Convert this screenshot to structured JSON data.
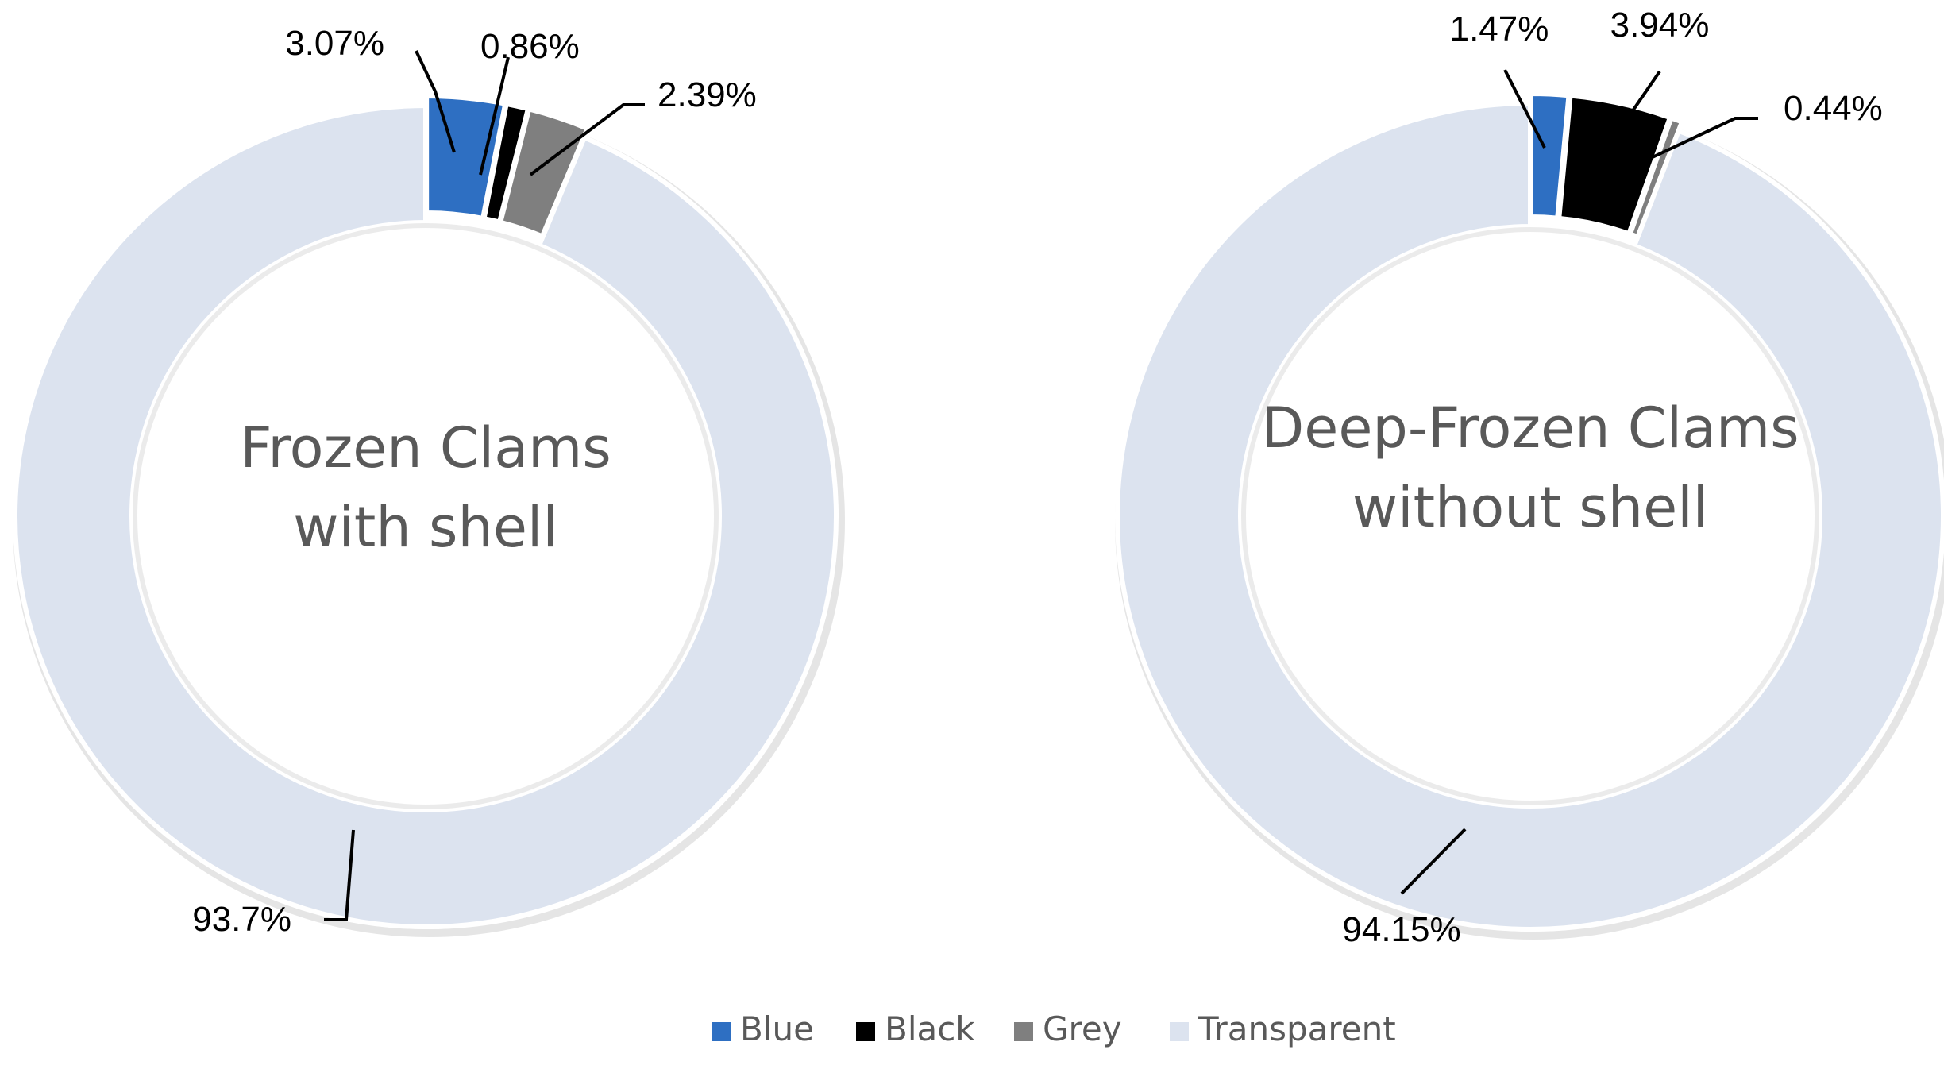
{
  "chart_data": [
    {
      "type": "pie",
      "center_label": [
        "Frozen Clams",
        "with shell"
      ],
      "slices": [
        {
          "name": "Blue",
          "value": 3.07,
          "label": "3.07%"
        },
        {
          "name": "Black",
          "value": 0.86,
          "label": "0.86%"
        },
        {
          "name": "Grey",
          "value": 2.39,
          "label": "2.39%"
        },
        {
          "name": "Transparent",
          "value": 93.7,
          "label": "93.7%"
        }
      ]
    },
    {
      "type": "pie",
      "center_label": [
        "Deep-Frozen Clams",
        "without shell"
      ],
      "slices": [
        {
          "name": "Blue",
          "value": 1.47,
          "label": "1.47%"
        },
        {
          "name": "Black",
          "value": 3.94,
          "label": "3.94%"
        },
        {
          "name": "Grey",
          "value": 0.44,
          "label": "0.44%"
        },
        {
          "name": "Transparent",
          "value": 94.15,
          "label": "94.15%"
        }
      ]
    }
  ],
  "legend": {
    "placement": "bottom",
    "items": [
      {
        "name": "Blue",
        "color": "#2e6fc2"
      },
      {
        "name": "Black",
        "color": "#000000"
      },
      {
        "name": "Grey",
        "color": "#7f7f7f"
      },
      {
        "name": "Transparent",
        "color": "#dce3ef"
      }
    ]
  }
}
